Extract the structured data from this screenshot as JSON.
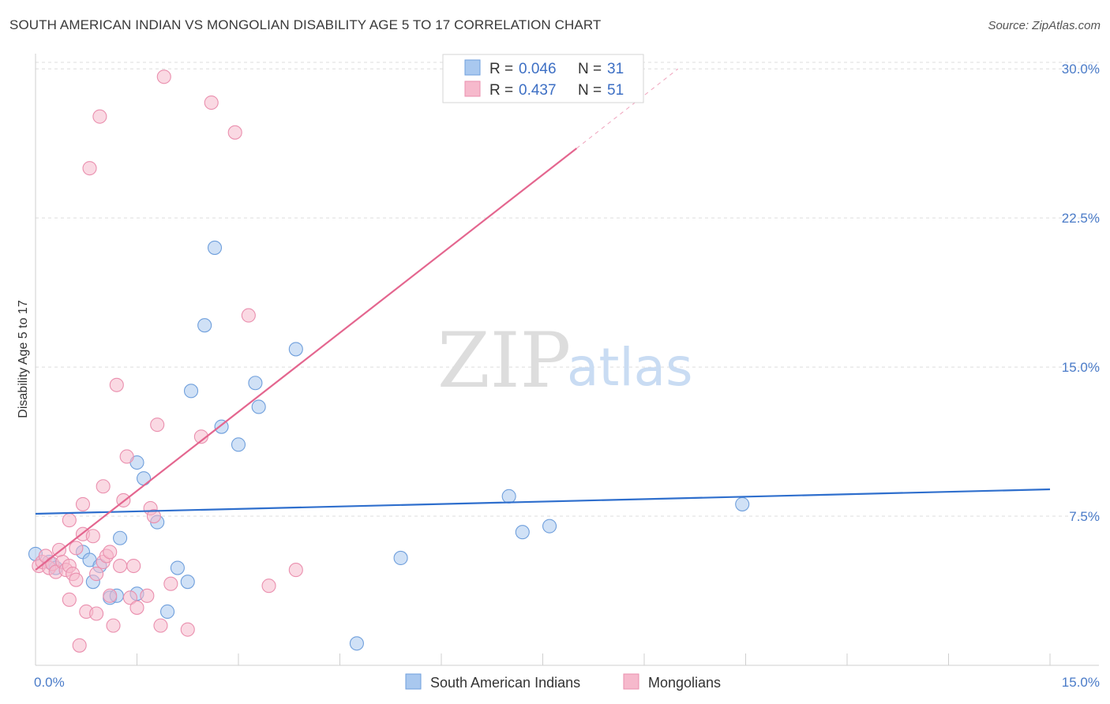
{
  "title": "SOUTH AMERICAN INDIAN VS MONGOLIAN DISABILITY AGE 5 TO 17 CORRELATION CHART",
  "source": "Source: ZipAtlas.com",
  "watermark": {
    "zip": "ZIP",
    "atlas": "atlas"
  },
  "colors": {
    "blue_fill": "#a9c8ef",
    "blue_stroke": "#6f9fdc",
    "blue_line": "#2f6fcd",
    "pink_fill": "#f6b9cc",
    "pink_stroke": "#ea8fae",
    "pink_line": "#e4668f",
    "grid": "#dddddd",
    "tick_label": "#4a7bc8"
  },
  "chart_data": {
    "type": "scatter",
    "title": "SOUTH AMERICAN INDIAN VS MONGOLIAN DISABILITY AGE 5 TO 17 CORRELATION CHART",
    "xlabel": "",
    "ylabel": "Disability Age 5 to 17",
    "xlim": [
      0,
      15
    ],
    "ylim": [
      0,
      31
    ],
    "x_tick_labels": [
      {
        "value": 0,
        "label": "0.0%"
      },
      {
        "value": 15,
        "label": "15.0%"
      }
    ],
    "y_tick_labels": [
      {
        "value": 7.5,
        "label": "7.5%"
      },
      {
        "value": 15,
        "label": "15.0%"
      },
      {
        "value": 22.5,
        "label": "22.5%"
      },
      {
        "value": 30,
        "label": "30.0%"
      }
    ],
    "grid": true,
    "legend_position": "top-center",
    "legend": [
      {
        "r_label": "R =",
        "r": "0.046",
        "n_label": "N =",
        "n": "31"
      },
      {
        "r_label": "R =",
        "r": "0.437",
        "n_label": "N =",
        "n": "51"
      }
    ],
    "bottom_legend": [
      "South American Indians",
      "Mongolians"
    ],
    "series": [
      {
        "name": "South American Indians",
        "color": "blue",
        "points": [
          [
            0.0,
            5.6
          ],
          [
            0.2,
            5.2
          ],
          [
            0.3,
            4.9
          ],
          [
            0.7,
            5.7
          ],
          [
            0.8,
            5.3
          ],
          [
            0.85,
            4.2
          ],
          [
            0.95,
            5.0
          ],
          [
            1.1,
            3.4
          ],
          [
            1.2,
            3.5
          ],
          [
            1.25,
            6.4
          ],
          [
            1.5,
            3.6
          ],
          [
            1.5,
            10.2
          ],
          [
            1.6,
            9.4
          ],
          [
            1.8,
            7.2
          ],
          [
            1.95,
            2.7
          ],
          [
            2.1,
            4.9
          ],
          [
            2.25,
            4.2
          ],
          [
            2.3,
            13.8
          ],
          [
            2.5,
            17.1
          ],
          [
            2.65,
            21.0
          ],
          [
            2.75,
            12.0
          ],
          [
            3.0,
            11.1
          ],
          [
            3.25,
            14.2
          ],
          [
            3.3,
            13.0
          ],
          [
            3.85,
            15.9
          ],
          [
            4.75,
            1.1
          ],
          [
            5.4,
            5.4
          ],
          [
            7.0,
            8.5
          ],
          [
            7.2,
            6.7
          ],
          [
            7.6,
            7.0
          ],
          [
            10.45,
            8.1
          ]
        ],
        "trend": {
          "x": [
            0,
            15
          ],
          "y": [
            7.62,
            8.85
          ]
        }
      },
      {
        "name": "Mongolians",
        "color": "pink",
        "points": [
          [
            0.05,
            5.0
          ],
          [
            0.1,
            5.2
          ],
          [
            0.15,
            5.5
          ],
          [
            0.2,
            4.9
          ],
          [
            0.25,
            5.1
          ],
          [
            0.3,
            4.7
          ],
          [
            0.35,
            5.8
          ],
          [
            0.4,
            5.2
          ],
          [
            0.45,
            4.8
          ],
          [
            0.5,
            5.0
          ],
          [
            0.55,
            4.6
          ],
          [
            0.6,
            5.9
          ],
          [
            0.5,
            3.3
          ],
          [
            0.5,
            7.3
          ],
          [
            0.6,
            4.3
          ],
          [
            0.65,
            1.0
          ],
          [
            0.7,
            6.6
          ],
          [
            0.7,
            8.1
          ],
          [
            0.75,
            2.7
          ],
          [
            0.8,
            25.0
          ],
          [
            0.85,
            6.5
          ],
          [
            0.9,
            4.6
          ],
          [
            0.9,
            2.6
          ],
          [
            0.95,
            27.6
          ],
          [
            1.0,
            9.0
          ],
          [
            1.0,
            5.2
          ],
          [
            1.05,
            5.5
          ],
          [
            1.1,
            5.7
          ],
          [
            1.1,
            3.5
          ],
          [
            1.15,
            2.0
          ],
          [
            1.2,
            14.1
          ],
          [
            1.25,
            5.0
          ],
          [
            1.3,
            8.3
          ],
          [
            1.35,
            10.5
          ],
          [
            1.4,
            3.4
          ],
          [
            1.45,
            5.0
          ],
          [
            1.5,
            2.9
          ],
          [
            1.65,
            3.5
          ],
          [
            1.7,
            7.9
          ],
          [
            1.75,
            7.5
          ],
          [
            1.8,
            12.1
          ],
          [
            1.85,
            2.0
          ],
          [
            1.9,
            29.6
          ],
          [
            2.0,
            4.1
          ],
          [
            2.25,
            1.8
          ],
          [
            2.45,
            11.5
          ],
          [
            2.6,
            28.3
          ],
          [
            2.95,
            26.8
          ],
          [
            3.15,
            17.6
          ],
          [
            3.45,
            4.0
          ],
          [
            3.85,
            4.8
          ]
        ],
        "trend": {
          "x": [
            0,
            8.0
          ],
          "y": [
            4.8,
            26.0
          ]
        },
        "trend_dashed_extension": {
          "x": [
            8.0,
            9.5
          ],
          "y": [
            26.0,
            30.0
          ]
        }
      }
    ]
  }
}
